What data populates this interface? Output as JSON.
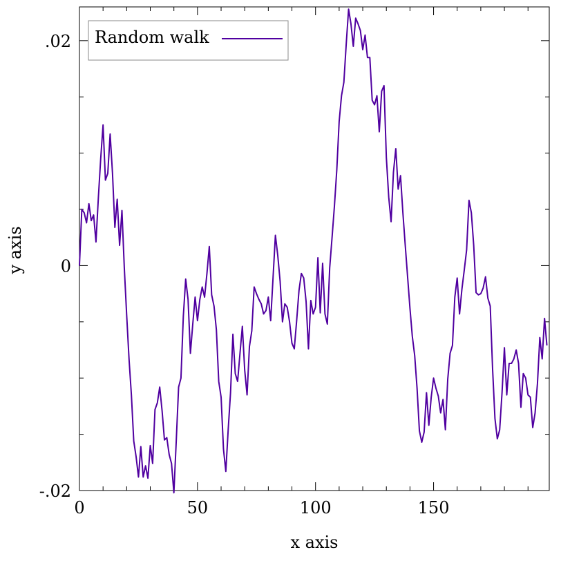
{
  "chart_data": {
    "type": "line",
    "title": "",
    "xlabel": "x axis",
    "ylabel": "y axis",
    "xlim": [
      0,
      199
    ],
    "ylim": [
      -0.02,
      0.023
    ],
    "grid": false,
    "legend_position": "top-left",
    "x_ticks": [
      {
        "value": 0,
        "label": "0"
      },
      {
        "value": 50,
        "label": "50"
      },
      {
        "value": 100,
        "label": "100"
      },
      {
        "value": 150,
        "label": "150"
      }
    ],
    "y_ticks": [
      {
        "value": -0.02,
        "label": "-.02"
      },
      {
        "value": 0,
        "label": "0"
      },
      {
        "value": 0.02,
        "label": ".02"
      }
    ],
    "series": [
      {
        "name": "Random walk",
        "color": "#5000a0",
        "values": [
          0,
          0.005,
          0.0047,
          0.0038,
          0.0055,
          0.004,
          0.0045,
          0.0021,
          0.006,
          0.0095,
          0.0125,
          0.0076,
          0.0082,
          0.0117,
          0.0082,
          0.0034,
          0.0059,
          0.0018,
          0.0049,
          -0.0002,
          -0.0044,
          -0.0083,
          -0.0115,
          -0.0156,
          -0.017,
          -0.0188,
          -0.0161,
          -0.0188,
          -0.0178,
          -0.0189,
          -0.016,
          -0.0176,
          -0.0128,
          -0.0122,
          -0.0108,
          -0.0129,
          -0.0155,
          -0.0153,
          -0.0168,
          -0.0176,
          -0.0202,
          -0.0156,
          -0.0108,
          -0.01,
          -0.0045,
          -0.0012,
          -0.003,
          -0.0078,
          -0.0052,
          -0.0028,
          -0.0049,
          -0.003,
          -0.0019,
          -0.0028,
          -0.0007,
          0.0017,
          -0.0026,
          -0.0036,
          -0.0057,
          -0.0103,
          -0.0117,
          -0.0163,
          -0.0183,
          -0.0146,
          -0.0113,
          -0.0061,
          -0.0096,
          -0.0103,
          -0.0078,
          -0.0054,
          -0.0093,
          -0.0115,
          -0.0072,
          -0.0058,
          -0.0019,
          -0.0025,
          -0.003,
          -0.0034,
          -0.0043,
          -0.004,
          -0.0028,
          -0.0049,
          -0.0011,
          0.0027,
          0.0009,
          -0.0014,
          -0.005,
          -0.0034,
          -0.0037,
          -0.005,
          -0.0069,
          -0.0074,
          -0.0049,
          -0.0022,
          -0.0007,
          -0.0011,
          -0.0032,
          -0.0074,
          -0.0031,
          -0.0043,
          -0.0037,
          0.0007,
          -0.0042,
          0.0002,
          -0.0043,
          -0.0052,
          -0.0002,
          0.0025,
          0.0053,
          0.0085,
          0.0128,
          0.0151,
          0.0163,
          0.0197,
          0.0228,
          0.0215,
          0.0195,
          0.022,
          0.0215,
          0.0209,
          0.0192,
          0.0205,
          0.0185,
          0.0185,
          0.0147,
          0.0143,
          0.0151,
          0.0119,
          0.0155,
          0.016,
          0.0096,
          0.0061,
          0.0039,
          0.0083,
          0.0104,
          0.0068,
          0.008,
          0.0047,
          0.0018,
          -0.001,
          -0.0038,
          -0.0063,
          -0.008,
          -0.0109,
          -0.0147,
          -0.0157,
          -0.0148,
          -0.0113,
          -0.0142,
          -0.0117,
          -0.01,
          -0.0109,
          -0.0116,
          -0.0131,
          -0.0119,
          -0.0146,
          -0.0101,
          -0.0078,
          -0.0071,
          -0.0028,
          -0.0011,
          -0.0043,
          -0.0021,
          -0.0004,
          0.0014,
          0.0058,
          0.0047,
          0.0018,
          -0.0024,
          -0.0026,
          -0.0025,
          -0.002,
          -0.001,
          -0.0029,
          -0.0036,
          -0.0092,
          -0.0136,
          -0.0154,
          -0.0146,
          -0.0113,
          -0.0073,
          -0.0115,
          -0.0087,
          -0.0087,
          -0.0083,
          -0.0075,
          -0.0087,
          -0.0126,
          -0.0096,
          -0.01,
          -0.0115,
          -0.0117,
          -0.0144,
          -0.0131,
          -0.0105,
          -0.0064,
          -0.0083,
          -0.0047,
          -0.0071
        ]
      }
    ]
  }
}
